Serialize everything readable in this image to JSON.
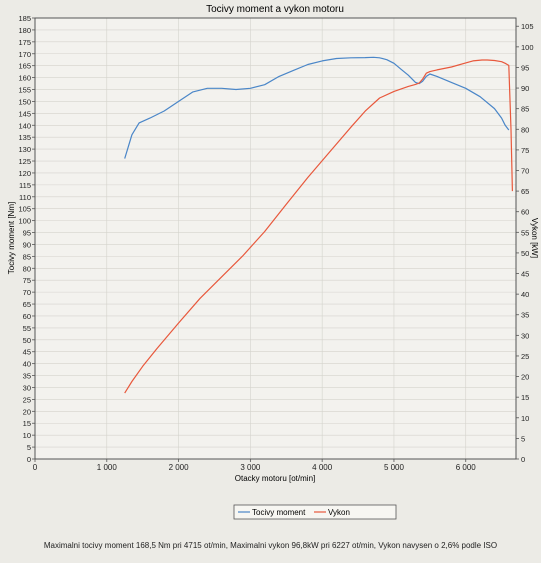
{
  "chart_data": {
    "type": "line",
    "title": "Tocivy moment a vykon motoru",
    "xlabel": "Otacky motoru [ot/min]",
    "ylabel_left": "Tocivy moment [Nm]",
    "ylabel_right": "Vykon [kW]",
    "xlim": [
      0,
      6700
    ],
    "ylim_left": [
      0,
      185
    ],
    "ylim_right": [
      0,
      107
    ],
    "grid": true,
    "legend_position": "bottom-center",
    "x_ticks": [
      {
        "value": 0,
        "label": "0"
      },
      {
        "value": 1000,
        "label": "1 000"
      },
      {
        "value": 2000,
        "label": "2 000"
      },
      {
        "value": 3000,
        "label": "3 000"
      },
      {
        "value": 4000,
        "label": "4 000"
      },
      {
        "value": 5000,
        "label": "5 000"
      },
      {
        "value": 6000,
        "label": "6 000"
      }
    ],
    "y_left_ticks": [
      0,
      5,
      10,
      15,
      20,
      25,
      30,
      35,
      40,
      45,
      50,
      55,
      60,
      65,
      70,
      75,
      80,
      85,
      90,
      95,
      100,
      105,
      110,
      115,
      120,
      125,
      130,
      135,
      140,
      145,
      150,
      155,
      160,
      165,
      170,
      175,
      180,
      185
    ],
    "y_right_ticks": [
      0,
      5,
      10,
      15,
      20,
      25,
      30,
      35,
      40,
      45,
      50,
      55,
      60,
      65,
      70,
      75,
      80,
      85,
      90,
      95,
      100,
      105
    ],
    "series": [
      {
        "name": "Tocivy moment",
        "axis": "left",
        "color": "#4a86c8",
        "x": [
          1250,
          1350,
          1450,
          1600,
          1800,
          2000,
          2200,
          2400,
          2600,
          2800,
          3000,
          3200,
          3400,
          3600,
          3800,
          4000,
          4200,
          4400,
          4600,
          4715,
          4800,
          4900,
          5000,
          5100,
          5200,
          5300,
          5350,
          5400,
          5450,
          5500,
          5600,
          5800,
          6000,
          6200,
          6400,
          6500,
          6550,
          6600
        ],
        "values": [
          126,
          136,
          141,
          143,
          146,
          150,
          154,
          155.5,
          155.5,
          155,
          155.5,
          157,
          160.5,
          163,
          165.5,
          167,
          168,
          168.3,
          168.4,
          168.5,
          168.3,
          167.5,
          166,
          163.5,
          161,
          158,
          157.5,
          158.5,
          160.5,
          161.5,
          160.5,
          158,
          155.5,
          152,
          147,
          143,
          140,
          138
        ]
      },
      {
        "name": "Vykon",
        "axis": "right",
        "color": "#e8583c",
        "x": [
          1250,
          1350,
          1500,
          1700,
          2000,
          2300,
          2600,
          2900,
          3200,
          3500,
          3800,
          4100,
          4400,
          4600,
          4800,
          5000,
          5200,
          5300,
          5350,
          5400,
          5450,
          5500,
          5600,
          5800,
          6000,
          6100,
          6227,
          6300,
          6400,
          6500,
          6550,
          6600,
          6630,
          6650
        ],
        "values": [
          16,
          18.8,
          22.5,
          26.8,
          33,
          39,
          44.2,
          49.4,
          55.2,
          61.8,
          68.3,
          74.4,
          80.5,
          84.4,
          87.6,
          89.2,
          90.4,
          90.9,
          91.2,
          92.2,
          93.6,
          94,
          94.4,
          95.1,
          96.1,
          96.6,
          96.8,
          96.8,
          96.7,
          96.4,
          96,
          95.5,
          80,
          65
        ]
      }
    ],
    "footer": "Maximalni tocivy moment 168,5 Nm pri 4715 ot/min,  Maximalni vykon 96,8kW pri 6227 ot/min,  Vykon navysen o 2,6% podle ISO"
  }
}
